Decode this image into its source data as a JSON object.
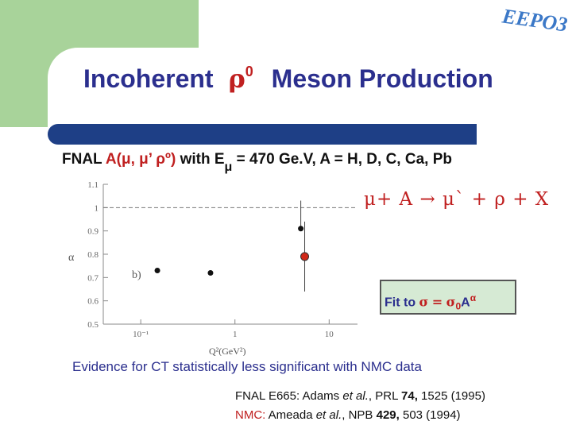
{
  "logo": {
    "text": "EEPO3",
    "color": "#3b78c7"
  },
  "title": {
    "prefix": "Incoherent",
    "rho": "ρ",
    "superscript": "0",
    "suffix": "Meson Production"
  },
  "fnal_line": {
    "label": "FNAL",
    "reaction": "A(μ, μ’ ρº)",
    "with": "with E",
    "e_sub": "μ",
    "energy": "= 470 Ge.V,",
    "nuclei": "A = H, D, C, Ca, Pb"
  },
  "reaction_eq": "μ+ A → μ` + ρ + X",
  "fit": {
    "prefix": "Fit to",
    "sigma": "σ",
    "eq": "=",
    "sigma0": "σ",
    "sub0": "0",
    "A": "A",
    "alpha": "α"
  },
  "evidence": "Evidence for CT statistically less significant with NMC data",
  "ref1": {
    "lab": "FNAL E665: Adams ",
    "etal": "et al.",
    "journal": ", PRL ",
    "vol": "74,",
    "rest": " 1525 (1995)"
  },
  "ref2": {
    "lab": "NMC:",
    "author": " Ameada ",
    "etal": "et al.",
    "journal": ", NPB ",
    "vol": "429,",
    "rest": " 503 (1994)"
  },
  "chart_data": {
    "type": "scatter",
    "ylabel": "α",
    "xlabel": "Q²(GeV²)",
    "y_ticks": [
      "0.5",
      "0.6",
      "0.7",
      "0.8",
      "0.9",
      "1",
      "1.1"
    ],
    "x_ticks": [
      "10⁻¹",
      "1",
      "10"
    ],
    "ylim": [
      0.5,
      1.1
    ],
    "x_scale": "log",
    "reference_line": 1.0,
    "panel_label": "b)",
    "series": [
      {
        "points": [
          {
            "x": 0.15,
            "y": 0.73
          },
          {
            "x": 0.55,
            "y": 0.72
          },
          {
            "x": 5.0,
            "y": 0.91
          }
        ],
        "color": "#111111"
      },
      {
        "points": [
          {
            "x": 5.5,
            "y": 0.79
          }
        ],
        "color": "#d02818"
      }
    ]
  }
}
